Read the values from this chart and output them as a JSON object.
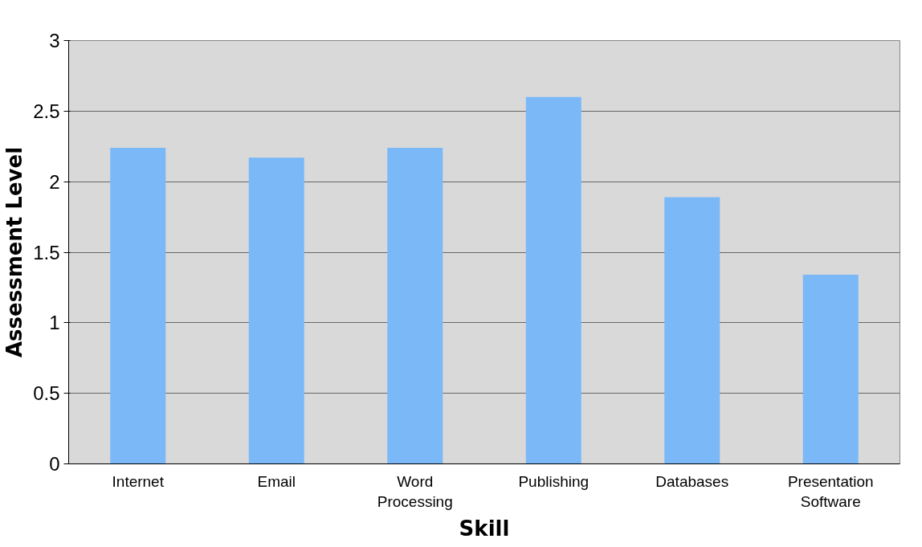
{
  "chart_data": {
    "type": "bar",
    "xlabel": "Skill",
    "ylabel": "Assessment Level",
    "categories": [
      "Internet",
      "Email",
      "Word Processing",
      "Publishing",
      "Databases",
      "Presentation Software"
    ],
    "values": [
      2.24,
      2.17,
      2.24,
      2.6,
      1.89,
      1.34
    ],
    "color": "#7ab8f8",
    "ylim": [
      0,
      3
    ],
    "yticks": [
      0,
      0.5,
      1,
      1.5,
      2,
      2.5,
      3
    ],
    "grid": "y"
  }
}
